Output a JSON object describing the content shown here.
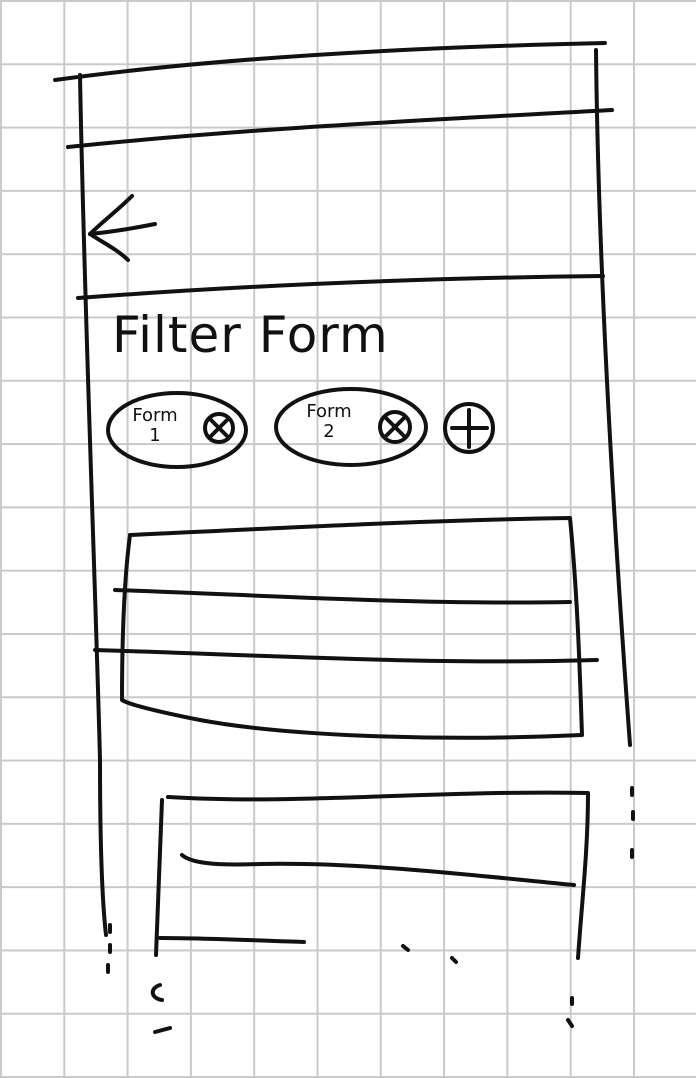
{
  "page": {
    "title": "Filter Form"
  },
  "filter_chips": [
    {
      "label": "Form\n1",
      "remove_icon": "circled-x-icon"
    },
    {
      "label": "Form\n2",
      "remove_icon": "circled-x-icon"
    }
  ],
  "add_chip_icon": "circled-plus-icon",
  "header": {
    "back_icon": "arrow-left-icon"
  },
  "colors": {
    "ink": "#111111",
    "grid": "#c9c9c9",
    "paper": "#ffffff"
  }
}
